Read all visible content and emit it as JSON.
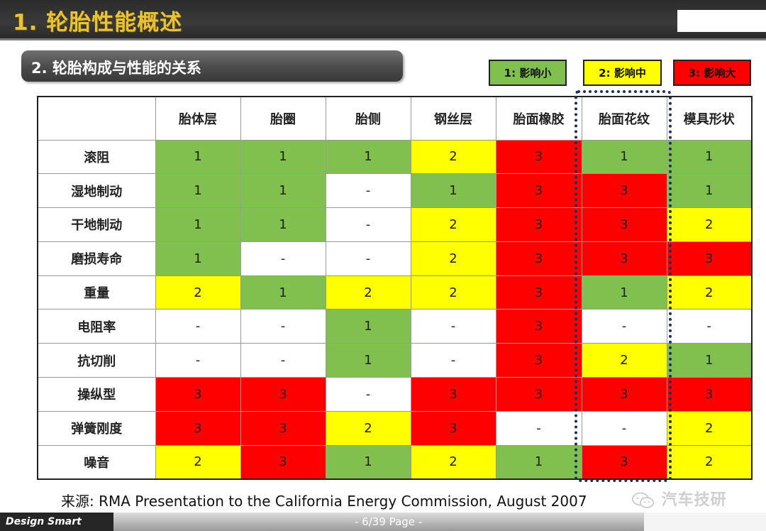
{
  "header": {
    "title": "1. 轮胎性能概述"
  },
  "subtitle": "2. 轮胎构成与性能的关系",
  "legend": [
    {
      "label": "1: 影响小",
      "color": "#7fc04e"
    },
    {
      "label": "2: 影响中",
      "color": "#ffff00"
    },
    {
      "label": "3: 影响大",
      "color": "#ff0000"
    }
  ],
  "table": {
    "columns": [
      "胎体层",
      "胎圈",
      "胎侧",
      "钢丝层",
      "胎面橡胶",
      "胎面花纹",
      "模具形状"
    ],
    "rows": [
      {
        "label": "滚阻",
        "values": [
          "1",
          "1",
          "1",
          "2",
          "3",
          "1",
          "1"
        ]
      },
      {
        "label": "湿地制动",
        "values": [
          "1",
          "1",
          "-",
          "1",
          "3",
          "3",
          "1"
        ]
      },
      {
        "label": "干地制动",
        "values": [
          "1",
          "1",
          "-",
          "2",
          "3",
          "3",
          "2"
        ]
      },
      {
        "label": "磨损寿命",
        "values": [
          "1",
          "-",
          "-",
          "2",
          "3",
          "3",
          "3"
        ]
      },
      {
        "label": "重量",
        "values": [
          "2",
          "1",
          "2",
          "2",
          "3",
          "1",
          "2"
        ]
      },
      {
        "label": "电阻率",
        "values": [
          "-",
          "-",
          "1",
          "-",
          "3",
          "-",
          "-"
        ]
      },
      {
        "label": "抗切削",
        "values": [
          "-",
          "-",
          "1",
          "-",
          "3",
          "2",
          "1"
        ]
      },
      {
        "label": "操纵型",
        "values": [
          "3",
          "3",
          "-",
          "3",
          "3",
          "3",
          "3"
        ]
      },
      {
        "label": "弹簧刚度",
        "values": [
          "3",
          "3",
          "2",
          "3",
          "-",
          "-",
          "2"
        ]
      },
      {
        "label": "噪音",
        "values": [
          "2",
          "3",
          "1",
          "2",
          "1",
          "3",
          "2"
        ]
      }
    ],
    "colors": [
      [
        "g",
        "g",
        "g",
        "y",
        "r",
        "g",
        "g"
      ],
      [
        "g",
        "g",
        "w",
        "g",
        "r",
        "r",
        "g"
      ],
      [
        "g",
        "g",
        "w",
        "y",
        "r",
        "r",
        "y"
      ],
      [
        "g",
        "w",
        "w",
        "y",
        "r",
        "r",
        "r"
      ],
      [
        "y",
        "g",
        "y",
        "y",
        "r",
        "g",
        "y"
      ],
      [
        "w",
        "w",
        "g",
        "w",
        "r",
        "w",
        "w"
      ],
      [
        "w",
        "w",
        "g",
        "w",
        "r",
        "y",
        "g"
      ],
      [
        "r",
        "r",
        "w",
        "r",
        "r",
        "r",
        "r"
      ],
      [
        "r",
        "r",
        "y",
        "r",
        "w",
        "w",
        "y"
      ],
      [
        "y",
        "r",
        "g",
        "y",
        "g",
        "r",
        "y"
      ]
    ]
  },
  "source": "来源: RMA Presentation to the California Energy Commission, August 2007",
  "watermark": "汽车技研",
  "footer": {
    "brand": "Design Smart",
    "page": "- 6/39 Page -"
  }
}
